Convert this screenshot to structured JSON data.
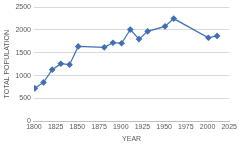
{
  "chart_data": {
    "type": "line",
    "x_label": "YEAR",
    "y_label": "TOTAL POPULATION",
    "x": [
      1801,
      1811,
      1821,
      1831,
      1841,
      1851,
      1881,
      1891,
      1901,
      1911,
      1921,
      1931,
      1951,
      1961,
      2001,
      2011
    ],
    "values": [
      720,
      850,
      1130,
      1260,
      1240,
      1640,
      1620,
      1720,
      1710,
      2010,
      1800,
      1970,
      2080,
      2250,
      1830,
      1870
    ],
    "color": "#3f6fb5",
    "marker": "diamond",
    "line_style": "solid",
    "xlim": [
      1800,
      2025
    ],
    "xticks": [
      1800,
      1825,
      1850,
      1875,
      1900,
      1925,
      1950,
      1975,
      2000,
      2025
    ],
    "ylim": [
      0,
      2500
    ],
    "yticks": [
      0,
      500,
      1000,
      1500,
      2000,
      2500
    ],
    "grid": true
  }
}
